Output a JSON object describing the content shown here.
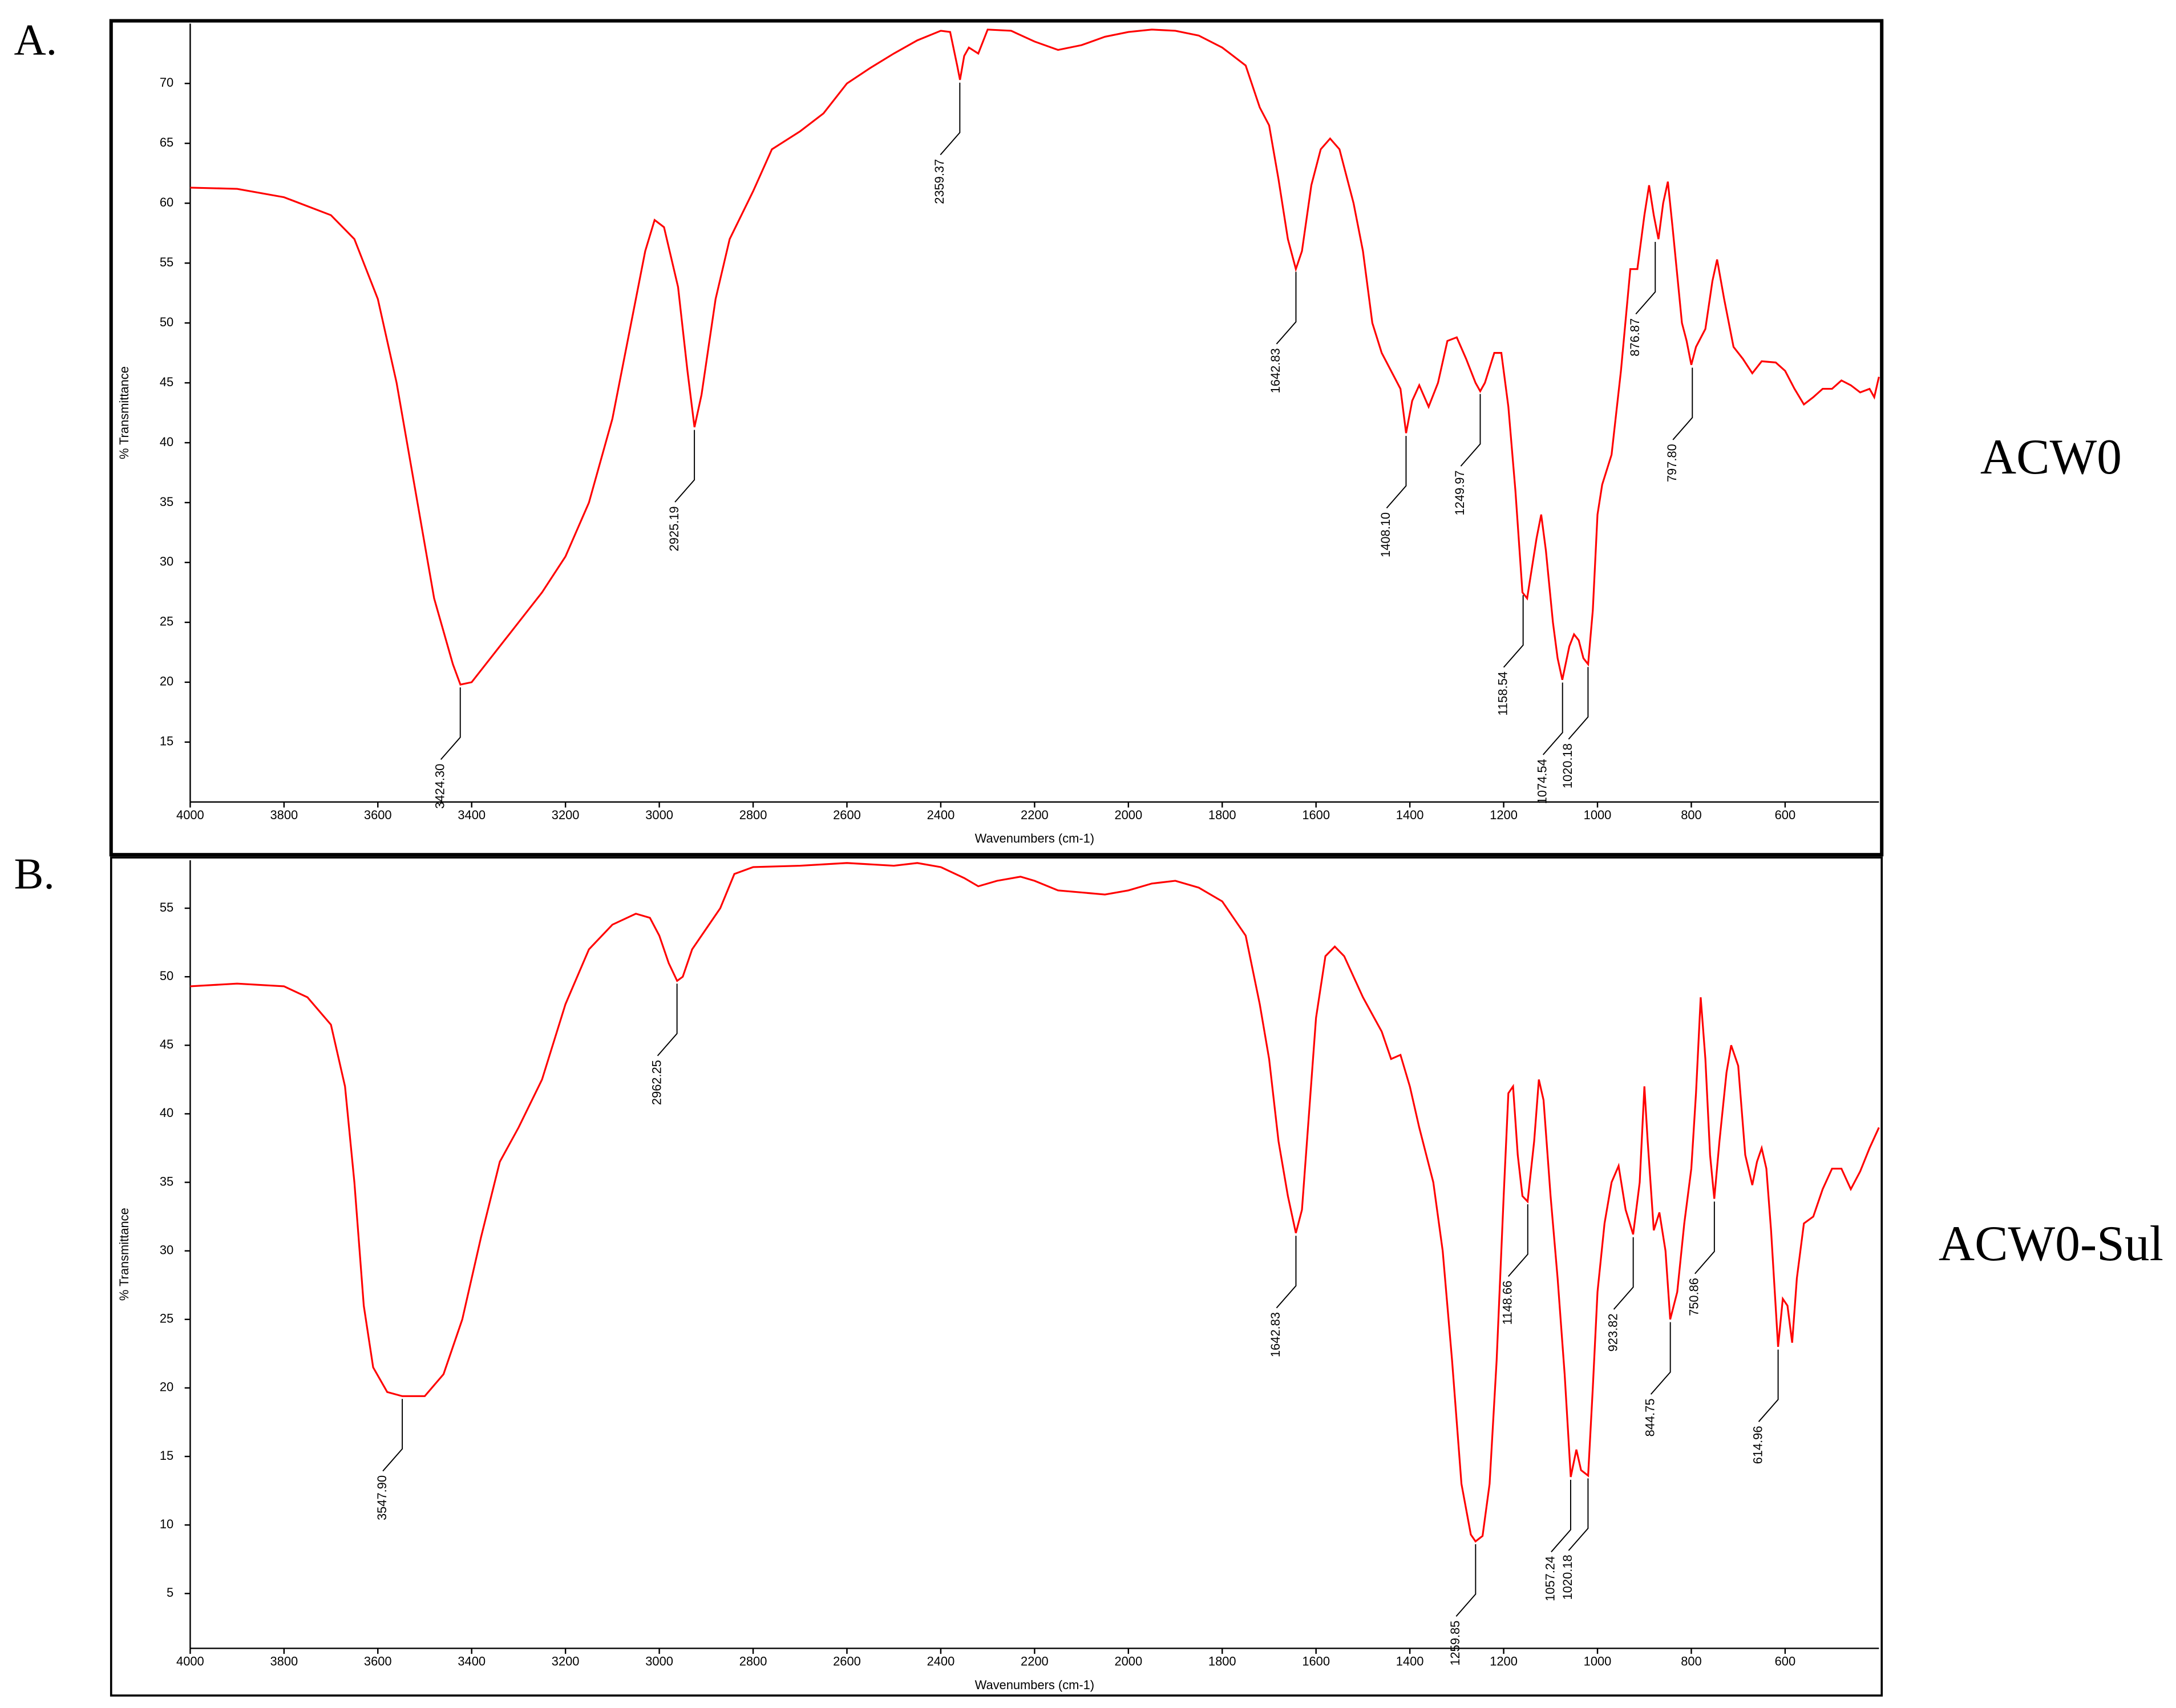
{
  "chart_data": [
    {
      "type": "line",
      "panel_label": "A.",
      "sample_name": "ACW0",
      "xlabel": "Wavenumbers (cm-1)",
      "ylabel": "% Transmittance",
      "color": "#ff0000",
      "xlim": [
        4000,
        400
      ],
      "ylim": [
        10,
        75
      ],
      "xticks": [
        4000,
        3800,
        3600,
        3400,
        3200,
        3000,
        2800,
        2600,
        2400,
        2200,
        2000,
        1800,
        1600,
        1400,
        1200,
        1000,
        800,
        600
      ],
      "yticks": [
        15,
        20,
        25,
        30,
        35,
        40,
        45,
        50,
        55,
        60,
        65,
        70
      ],
      "x": [
        4000,
        3900,
        3800,
        3700,
        3650,
        3600,
        3560,
        3520,
        3480,
        3440,
        3424,
        3400,
        3350,
        3300,
        3250,
        3200,
        3150,
        3100,
        3060,
        3030,
        3010,
        2990,
        2960,
        2940,
        2925,
        2910,
        2880,
        2850,
        2800,
        2760,
        2700,
        2650,
        2600,
        2550,
        2500,
        2450,
        2400,
        2380,
        2365,
        2359,
        2350,
        2340,
        2320,
        2300,
        2250,
        2200,
        2150,
        2100,
        2050,
        2000,
        1950,
        1900,
        1850,
        1800,
        1750,
        1720,
        1700,
        1680,
        1660,
        1643,
        1630,
        1610,
        1590,
        1570,
        1550,
        1520,
        1500,
        1480,
        1460,
        1440,
        1420,
        1408,
        1395,
        1380,
        1360,
        1340,
        1320,
        1300,
        1280,
        1260,
        1250,
        1240,
        1220,
        1205,
        1190,
        1175,
        1160,
        1150,
        1130,
        1120,
        1110,
        1095,
        1085,
        1075,
        1060,
        1050,
        1040,
        1030,
        1020,
        1010,
        1000,
        990,
        970,
        950,
        930,
        915,
        900,
        890,
        880,
        870,
        860,
        850,
        840,
        820,
        810,
        800,
        790,
        770,
        755,
        745,
        730,
        710,
        690,
        670,
        650,
        620,
        600,
        580,
        560,
        540,
        520,
        500,
        480,
        460,
        440,
        420,
        410,
        400
      ],
      "values": [
        61.3,
        61.2,
        60.5,
        59,
        57,
        52,
        45,
        36,
        27,
        21.5,
        19.8,
        20,
        22.5,
        25,
        27.5,
        30.5,
        35,
        42,
        50,
        56,
        58.6,
        58,
        53,
        46,
        41.3,
        44,
        52,
        57,
        61,
        64.5,
        66,
        67.5,
        70,
        71.3,
        72.5,
        73.6,
        74.4,
        74.3,
        71.5,
        70.3,
        72.3,
        73,
        72.5,
        74.5,
        74.4,
        73.5,
        72.8,
        73.2,
        73.9,
        74.3,
        74.5,
        74.4,
        74,
        73,
        71.5,
        68,
        66.5,
        62,
        57,
        54.5,
        56,
        61.5,
        64.5,
        65.4,
        64.5,
        60,
        56,
        50,
        47.5,
        46,
        44.5,
        40.8,
        43.5,
        44.8,
        43,
        45,
        48.5,
        48.8,
        47,
        45,
        44.3,
        45,
        47.5,
        47.5,
        43,
        36,
        27.5,
        27,
        32,
        34,
        31,
        25,
        22,
        20.2,
        23,
        24,
        23.5,
        22,
        21.5,
        26,
        34,
        36.5,
        39,
        46,
        54.5,
        54.5,
        59,
        61.5,
        59,
        57,
        60,
        61.8,
        58,
        50,
        48.5,
        46.5,
        48,
        49.5,
        53.5,
        55.3,
        52,
        48,
        47,
        45.8,
        46.8,
        46.7,
        46,
        44.5,
        43.2,
        43.8,
        44.5,
        44.5,
        45.2,
        44.8,
        44.2,
        44.5,
        43.8,
        45.5
      ],
      "annotations": [
        {
          "x": 3424.3,
          "y": 19.8,
          "label": "3424.30"
        },
        {
          "x": 2925.19,
          "y": 41.3,
          "label": "2925.19"
        },
        {
          "x": 2359.37,
          "y": 70.3,
          "label": "2359.37"
        },
        {
          "x": 1642.83,
          "y": 54.5,
          "label": "1642.83"
        },
        {
          "x": 1408.1,
          "y": 40.8,
          "label": "1408.10"
        },
        {
          "x": 1249.97,
          "y": 44.3,
          "label": "1249.97"
        },
        {
          "x": 1158.54,
          "y": 27.5,
          "label": "1158.54"
        },
        {
          "x": 1074.54,
          "y": 20.2,
          "label": "1074.54"
        },
        {
          "x": 1020.18,
          "y": 21.5,
          "label": "1020.18"
        },
        {
          "x": 876.87,
          "y": 57,
          "label": "876.87"
        },
        {
          "x": 797.8,
          "y": 46.5,
          "label": "797.80"
        }
      ]
    },
    {
      "type": "line",
      "panel_label": "B.",
      "sample_name": "ACW0-Sul",
      "xlabel": "Wavenumbers (cm-1)",
      "ylabel": "% Transmittance",
      "color": "#ff0000",
      "xlim": [
        4000,
        400
      ],
      "ylim": [
        1,
        58.5
      ],
      "xticks": [
        4000,
        3800,
        3600,
        3400,
        3200,
        3000,
        2800,
        2600,
        2400,
        2200,
        2000,
        1800,
        1600,
        1400,
        1200,
        1000,
        800,
        600
      ],
      "yticks": [
        5,
        10,
        15,
        20,
        25,
        30,
        35,
        40,
        45,
        50,
        55
      ],
      "x": [
        4000,
        3900,
        3800,
        3750,
        3700,
        3670,
        3650,
        3630,
        3610,
        3580,
        3548,
        3500,
        3460,
        3420,
        3380,
        3340,
        3300,
        3250,
        3200,
        3150,
        3100,
        3050,
        3020,
        3000,
        2980,
        2962,
        2950,
        2930,
        2900,
        2870,
        2840,
        2800,
        2700,
        2600,
        2500,
        2450,
        2400,
        2350,
        2320,
        2280,
        2230,
        2200,
        2150,
        2050,
        2000,
        1950,
        1900,
        1850,
        1800,
        1750,
        1720,
        1700,
        1680,
        1660,
        1643,
        1630,
        1615,
        1600,
        1580,
        1560,
        1540,
        1500,
        1460,
        1440,
        1420,
        1400,
        1380,
        1350,
        1330,
        1310,
        1290,
        1270,
        1260,
        1245,
        1230,
        1215,
        1200,
        1190,
        1180,
        1170,
        1160,
        1149,
        1135,
        1125,
        1115,
        1100,
        1085,
        1070,
        1057,
        1045,
        1035,
        1020,
        1010,
        1000,
        985,
        970,
        955,
        940,
        924,
        910,
        900,
        893,
        880,
        868,
        855,
        845,
        830,
        815,
        800,
        790,
        780,
        770,
        760,
        751,
        740,
        725,
        715,
        700,
        685,
        670,
        660,
        650,
        640,
        630,
        615,
        605,
        595,
        585,
        575,
        560,
        540,
        520,
        500,
        480,
        460,
        440,
        420,
        400
      ],
      "values": [
        49.3,
        49.5,
        49.3,
        48.5,
        46.5,
        42,
        35,
        26,
        21.5,
        19.7,
        19.4,
        19.4,
        21,
        25,
        31,
        36.5,
        39,
        42.5,
        48,
        52,
        53.8,
        54.6,
        54.3,
        53,
        51,
        49.7,
        50,
        52,
        53.5,
        55,
        57.5,
        58,
        58.1,
        58.3,
        58.1,
        58.3,
        58,
        57.2,
        56.6,
        57,
        57.3,
        57,
        56.3,
        56,
        56.3,
        56.8,
        57,
        56.5,
        55.5,
        53,
        48,
        44,
        38,
        34,
        31.3,
        33,
        40,
        47,
        51.5,
        52.2,
        51.5,
        48.5,
        46,
        44,
        44.3,
        42,
        39,
        35,
        30,
        22,
        13,
        9.3,
        8.8,
        9.2,
        13,
        22,
        34,
        41.5,
        42,
        37,
        34,
        33.6,
        38,
        42.5,
        41,
        34,
        28,
        21,
        13.5,
        15.5,
        14,
        13.6,
        20,
        27,
        32,
        35,
        36.2,
        33,
        31.2,
        35,
        42,
        38,
        31.5,
        32.8,
        30,
        25,
        27,
        32,
        36,
        41.5,
        48.5,
        44,
        37,
        33.8,
        38,
        43,
        45,
        43.5,
        37,
        34.8,
        36.5,
        37.5,
        36,
        31.5,
        23,
        26.5,
        26,
        23.3,
        28,
        32,
        32.5,
        34.5,
        36,
        36,
        34.5,
        35.8,
        37.5,
        39
      ],
      "annotations": [
        {
          "x": 3547.9,
          "y": 19.4,
          "label": "3547.90"
        },
        {
          "x": 2962.25,
          "y": 49.7,
          "label": "2962.25"
        },
        {
          "x": 1642.83,
          "y": 31.3,
          "label": "1642.83"
        },
        {
          "x": 1259.85,
          "y": 8.8,
          "label": "1259.85"
        },
        {
          "x": 1148.66,
          "y": 33.6,
          "label": "1148.66"
        },
        {
          "x": 1057.24,
          "y": 13.5,
          "label": "1057.24"
        },
        {
          "x": 1020.18,
          "y": 13.6,
          "label": "1020.18"
        },
        {
          "x": 923.82,
          "y": 31.2,
          "label": "923.82"
        },
        {
          "x": 844.75,
          "y": 25,
          "label": "844.75"
        },
        {
          "x": 750.86,
          "y": 33.8,
          "label": "750.86"
        },
        {
          "x": 614.96,
          "y": 23,
          "label": "614.96"
        }
      ]
    }
  ]
}
